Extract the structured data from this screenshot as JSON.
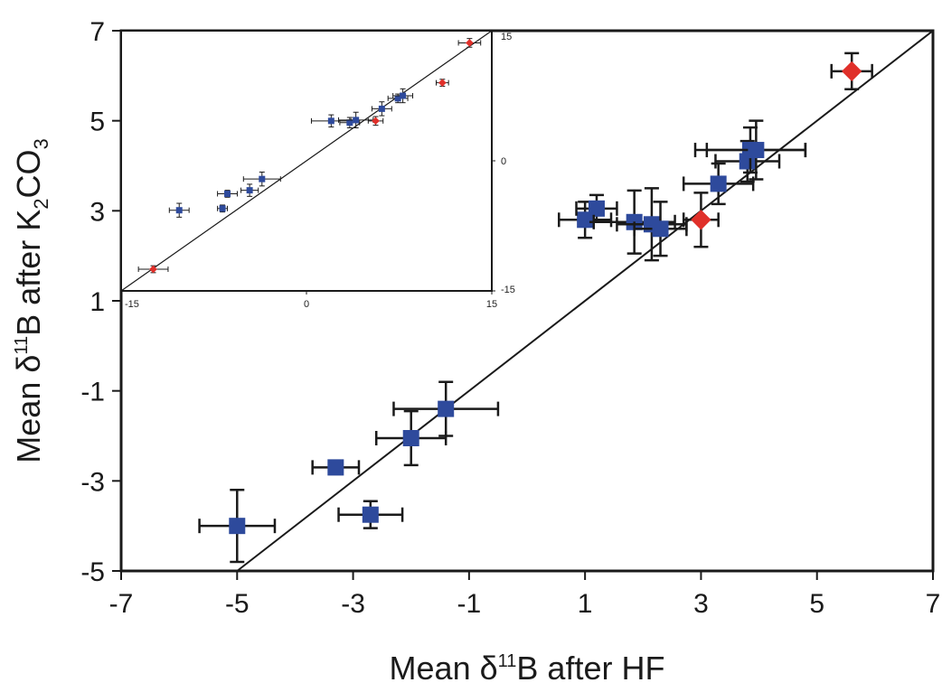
{
  "chart_data": [
    {
      "type": "scatter",
      "title": "",
      "xlabel": {
        "prefix": "Mean δ",
        "sup": "11",
        "suffix": "B after HF"
      },
      "ylabel": {
        "prefix": "Mean δ",
        "sup": "11",
        "mid": "B after K",
        "sub1": "2",
        "mid2": "CO",
        "sub2": "3"
      },
      "xlim": [
        -7,
        7
      ],
      "ylim": [
        -5,
        7
      ],
      "xticks": [
        "-7",
        "-5",
        "-3",
        "-1",
        "1",
        "3",
        "5",
        "7"
      ],
      "yticks": [
        "-5",
        "-3",
        "-1",
        "1",
        "3",
        "5",
        "7"
      ],
      "reference_line": "1:1",
      "grid": false,
      "series": [
        {
          "marker": "square",
          "color": "#2e4a9c",
          "points": [
            {
              "x": -5.0,
              "y": -4.0,
              "xerr": 0.65,
              "yerr": 0.8
            },
            {
              "x": -3.3,
              "y": -2.7,
              "xerr": 0.4,
              "yerr": 0.15
            },
            {
              "x": -2.7,
              "y": -3.75,
              "xerr": 0.55,
              "yerr": 0.3
            },
            {
              "x": -2.0,
              "y": -2.05,
              "xerr": 0.6,
              "yerr": 0.6
            },
            {
              "x": -1.4,
              "y": -1.4,
              "xerr": 0.9,
              "yerr": 0.6
            },
            {
              "x": 1.0,
              "y": 2.8,
              "xerr": 0.45,
              "yerr": 0.4
            },
            {
              "x": 1.2,
              "y": 3.05,
              "xerr": 0.35,
              "yerr": 0.3
            },
            {
              "x": 1.85,
              "y": 2.75,
              "xerr": 0.7,
              "yerr": 0.7
            },
            {
              "x": 2.15,
              "y": 2.7,
              "xerr": 0.6,
              "yerr": 0.8
            },
            {
              "x": 2.3,
              "y": 2.6,
              "xerr": 0.45,
              "yerr": 0.6
            },
            {
              "x": 3.3,
              "y": 3.6,
              "xerr": 0.6,
              "yerr": 0.45
            },
            {
              "x": 3.8,
              "y": 4.1,
              "xerr": 0.55,
              "yerr": 0.45
            },
            {
              "x": 3.85,
              "y": 4.35,
              "xerr": 0.95,
              "yerr": 0.5
            },
            {
              "x": 3.95,
              "y": 4.35,
              "xerr": 0.85,
              "yerr": 0.65
            }
          ]
        },
        {
          "marker": "diamond",
          "color": "#e0302a",
          "points": [
            {
              "x": 3.0,
              "y": 2.8,
              "xerr": 0.3,
              "yerr": 0.6
            },
            {
              "x": 5.6,
              "y": 6.1,
              "xerr": 0.35,
              "yerr": 0.4
            }
          ]
        }
      ]
    },
    {
      "type": "scatter",
      "title": "",
      "xlim": [
        -15,
        15
      ],
      "ylim": [
        -15,
        15
      ],
      "xticks": [
        "-15",
        "0",
        "15"
      ],
      "yticks": [
        "15",
        "0",
        "-15"
      ],
      "reference_line": "1:1",
      "series": [
        {
          "marker": "square",
          "color": "#2e4a9c",
          "points": [
            {
              "x": -10.3,
              "y": -5.7,
              "xerr": 0.8,
              "yerr": 0.8
            },
            {
              "x": -6.8,
              "y": -5.5,
              "xerr": 0.4,
              "yerr": 0.4
            },
            {
              "x": -6.4,
              "y": -3.8,
              "xerr": 0.8,
              "yerr": 0.4
            },
            {
              "x": -4.6,
              "y": -3.4,
              "xerr": 0.7,
              "yerr": 0.7
            },
            {
              "x": -3.6,
              "y": -2.1,
              "xerr": 1.5,
              "yerr": 0.8
            },
            {
              "x": 2.0,
              "y": 4.6,
              "xerr": 1.6,
              "yerr": 0.7
            },
            {
              "x": 3.5,
              "y": 4.4,
              "xerr": 0.8,
              "yerr": 0.6
            },
            {
              "x": 4.0,
              "y": 4.7,
              "xerr": 1.4,
              "yerr": 0.9
            },
            {
              "x": 6.1,
              "y": 6.0,
              "xerr": 0.8,
              "yerr": 0.8
            },
            {
              "x": 7.4,
              "y": 7.2,
              "xerr": 0.8,
              "yerr": 0.5
            },
            {
              "x": 7.8,
              "y": 7.5,
              "xerr": 0.8,
              "yerr": 0.8
            }
          ]
        },
        {
          "marker": "diamond",
          "color": "#e0302a",
          "points": [
            {
              "x": -12.4,
              "y": -12.5,
              "xerr": 1.2,
              "yerr": 0.4
            },
            {
              "x": 5.6,
              "y": 4.6,
              "xerr": 0.6,
              "yerr": 0.5
            },
            {
              "x": 11.0,
              "y": 9.0,
              "xerr": 0.5,
              "yerr": 0.4
            },
            {
              "x": 13.2,
              "y": 13.6,
              "xerr": 0.9,
              "yerr": 0.5
            }
          ]
        }
      ]
    }
  ]
}
